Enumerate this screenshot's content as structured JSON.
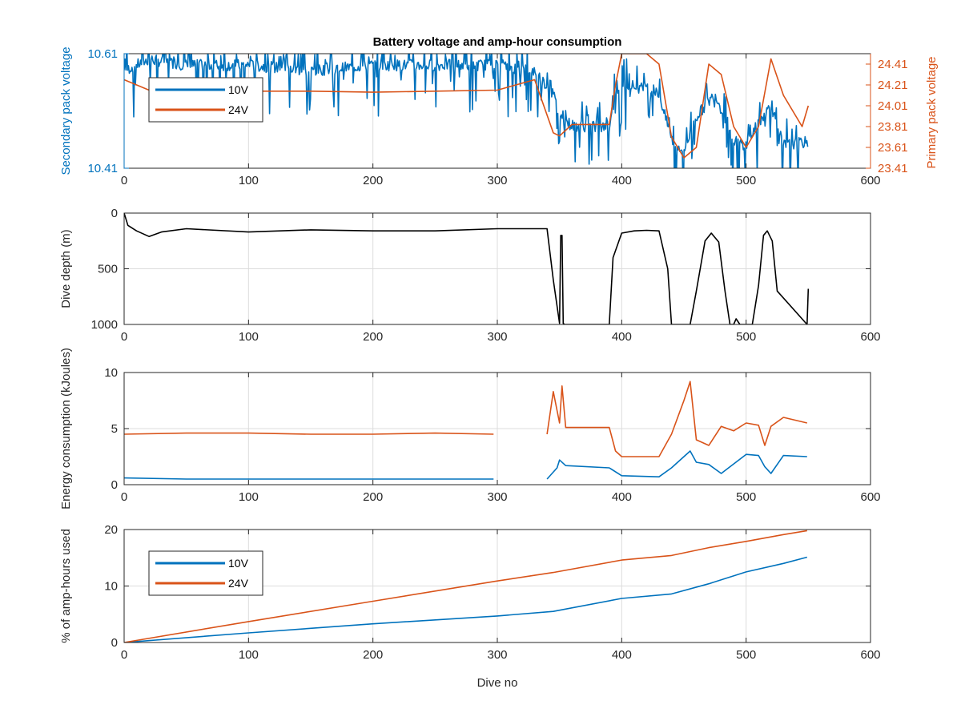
{
  "figure": {
    "title": "Battery voltage and amp-hour consumption",
    "colors": {
      "s10v": "#0072BD",
      "s24v": "#D95319",
      "depth": "#000000",
      "axis": "#262626",
      "grid": "#dcdcdc"
    }
  },
  "chart_data": [
    {
      "type": "line",
      "title": "Battery voltage and amp-hour consumption",
      "xlabel": "",
      "ylabel": "Secondary pack voltage",
      "y2label": "Primary pack voltage",
      "xlim": [
        0,
        600
      ],
      "ylim": [
        10.41,
        10.61
      ],
      "y2lim": [
        23.41,
        24.51
      ],
      "xticks": [
        0,
        100,
        200,
        300,
        400,
        500,
        600
      ],
      "yticks": [
        10.41,
        10.61
      ],
      "y2ticks": [
        23.41,
        23.61,
        23.81,
        24.01,
        24.21,
        24.41
      ],
      "legend": {
        "position": "top-left",
        "entries": [
          "10V",
          "24V"
        ]
      },
      "grid": true,
      "series": [
        {
          "name": "10V",
          "axis": "left",
          "noise": true,
          "x": [
            0,
            20,
            50,
            100,
            150,
            200,
            250,
            300,
            330,
            345,
            350,
            360,
            390,
            395,
            400,
            430,
            440,
            450,
            460,
            475,
            490,
            500,
            510,
            520,
            530,
            550
          ],
          "y": [
            10.58,
            10.6,
            10.59,
            10.59,
            10.58,
            10.59,
            10.59,
            10.59,
            10.58,
            10.54,
            10.5,
            10.485,
            10.48,
            10.54,
            10.56,
            10.54,
            10.46,
            10.44,
            10.5,
            10.54,
            10.46,
            10.45,
            10.49,
            10.52,
            10.45,
            10.456
          ]
        },
        {
          "name": "24V",
          "axis": "right",
          "x": [
            0,
            20,
            50,
            100,
            150,
            200,
            250,
            300,
            330,
            345,
            350,
            360,
            390,
            395,
            400,
            420,
            430,
            440,
            450,
            460,
            470,
            480,
            490,
            500,
            510,
            520,
            530,
            545,
            550
          ],
          "y": [
            24.26,
            24.16,
            24.18,
            24.15,
            24.15,
            24.14,
            24.15,
            24.16,
            24.26,
            23.75,
            23.72,
            23.83,
            23.83,
            24.21,
            24.51,
            24.51,
            24.41,
            23.71,
            23.51,
            23.61,
            24.41,
            24.31,
            23.81,
            23.61,
            23.81,
            24.46,
            24.11,
            23.81,
            24.01
          ]
        }
      ]
    },
    {
      "type": "line",
      "xlabel": "",
      "ylabel": "Dive depth (m)",
      "xlim": [
        0,
        600
      ],
      "ylim": [
        0,
        1000
      ],
      "y_reversed": true,
      "xticks": [
        0,
        100,
        200,
        300,
        400,
        500,
        600
      ],
      "yticks": [
        0,
        500,
        1000
      ],
      "grid": true,
      "series": [
        {
          "x": [
            0,
            3,
            10,
            20,
            30,
            50,
            100,
            150,
            200,
            250,
            300,
            340,
            345,
            350,
            351,
            352,
            353,
            354,
            355,
            390,
            393,
            400,
            410,
            420,
            430,
            437,
            440,
            455,
            460,
            467,
            472,
            478,
            483,
            487,
            490,
            492,
            495,
            505,
            510,
            514,
            517,
            521,
            525,
            549,
            550
          ],
          "y": [
            0,
            110,
            160,
            210,
            170,
            140,
            170,
            150,
            160,
            160,
            140,
            140,
            600,
            990,
            200,
            200,
            990,
            1000,
            1000,
            1000,
            400,
            180,
            160,
            155,
            160,
            500,
            1000,
            1000,
            700,
            250,
            180,
            260,
            700,
            1000,
            1000,
            950,
            1000,
            1000,
            650,
            200,
            160,
            250,
            700,
            1000,
            680
          ]
        }
      ]
    },
    {
      "type": "line",
      "xlabel": "",
      "ylabel": "Energy consumption (kJoules)",
      "xlim": [
        0,
        600
      ],
      "ylim": [
        0,
        10
      ],
      "xticks": [
        0,
        100,
        200,
        300,
        400,
        500,
        600
      ],
      "yticks": [
        0,
        5,
        10
      ],
      "grid": true,
      "series": [
        {
          "name": "10V",
          "x": [
            0,
            50,
            100,
            150,
            200,
            250,
            297,
            300,
            340,
            348,
            350,
            355,
            390,
            400,
            430,
            440,
            450,
            455,
            460,
            470,
            480,
            500,
            510,
            515,
            520,
            530,
            549
          ],
          "y": [
            0.6,
            0.5,
            0.5,
            0.5,
            0.5,
            0.5,
            0.5,
            null,
            0.5,
            1.5,
            2.2,
            1.7,
            1.5,
            0.8,
            0.7,
            1.5,
            2.5,
            3.0,
            2.0,
            1.8,
            1.0,
            2.7,
            2.6,
            1.6,
            1.0,
            2.6,
            2.5
          ]
        },
        {
          "name": "24V",
          "x": [
            0,
            50,
            100,
            150,
            200,
            250,
            297,
            300,
            340,
            345,
            350,
            352,
            355,
            390,
            395,
            400,
            430,
            440,
            450,
            455,
            460,
            470,
            480,
            490,
            500,
            510,
            515,
            520,
            530,
            549
          ],
          "y": [
            4.5,
            4.6,
            4.6,
            4.5,
            4.5,
            4.6,
            4.5,
            null,
            4.5,
            8.3,
            5.5,
            8.8,
            5.1,
            5.1,
            3.0,
            2.5,
            2.5,
            4.5,
            7.5,
            9.2,
            4.0,
            3.5,
            5.2,
            4.8,
            5.5,
            5.3,
            3.5,
            5.2,
            6.0,
            5.5
          ]
        }
      ]
    },
    {
      "type": "line",
      "xlabel": "Dive no",
      "ylabel": "% of amp-hours used",
      "xlim": [
        0,
        600
      ],
      "ylim": [
        0,
        20
      ],
      "xticks": [
        0,
        100,
        200,
        300,
        400,
        500,
        600
      ],
      "yticks": [
        0,
        10,
        20
      ],
      "legend": {
        "position": "top-left",
        "entries": [
          "10V",
          "24V"
        ]
      },
      "grid": true,
      "series": [
        {
          "name": "10V",
          "x": [
            0,
            100,
            200,
            300,
            345,
            400,
            440,
            470,
            500,
            530,
            549
          ],
          "y": [
            0,
            1.7,
            3.3,
            4.7,
            5.5,
            7.8,
            8.6,
            10.4,
            12.5,
            14.0,
            15.1
          ]
        },
        {
          "name": "24V",
          "x": [
            0,
            100,
            200,
            300,
            345,
            400,
            440,
            470,
            500,
            530,
            549
          ],
          "y": [
            0,
            3.7,
            7.3,
            10.9,
            12.4,
            14.6,
            15.4,
            16.8,
            17.9,
            19.1,
            19.8
          ]
        }
      ]
    }
  ]
}
